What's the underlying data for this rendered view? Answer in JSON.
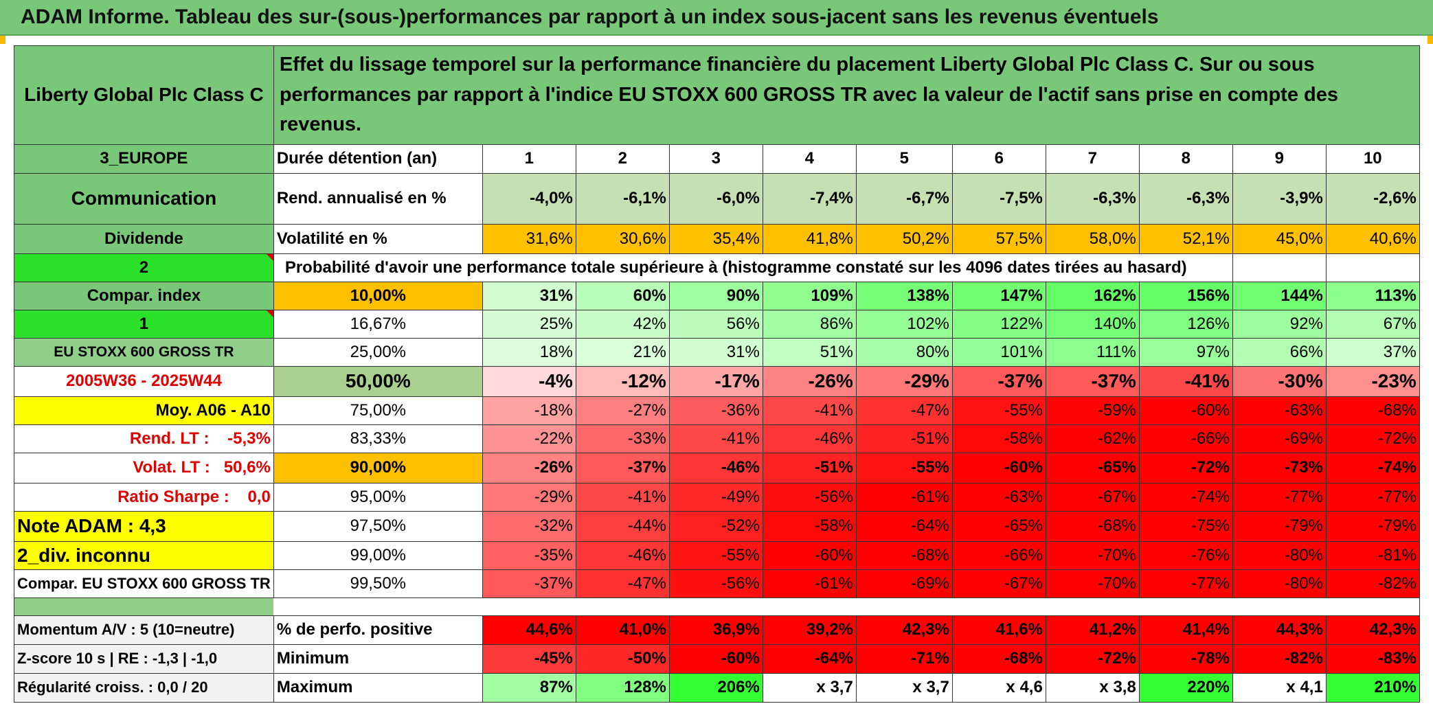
{
  "title": "ADAM Informe. Tableau des sur-(sous-)performances par rapport à un index sous-jacent sans les revenus éventuels",
  "asset": "Liberty Global Plc Class C",
  "description": "Effet du lissage temporel sur la performance financière du placement Liberty Global Plc Class C. Sur ou sous performances par rapport à l'indice EU STOXX 600 GROSS TR avec la valeur de l'actif sans prise en compte des revenus.",
  "left": {
    "region": "3_EUROPE",
    "sector": "Communication",
    "dividend": "Dividende",
    "val2": "2",
    "compar_index": "Compar. index",
    "val1": "1",
    "index_name": "EU STOXX 600 GROSS TR",
    "period": "2005W36 - 2025W44",
    "moy": "Moy. A06 - A10",
    "rend_lt": "Rend. LT :    -5,3%",
    "volat_lt": "Volat. LT :   50,6%",
    "sharpe": "Ratio Sharpe :    0,0",
    "note": "Note ADAM : 4,3",
    "div_unknown": "2_div. inconnu",
    "compar_full": "Compar. EU STOXX 600 GROSS TR",
    "momentum": "Momentum A/V : 5 (10=neutre)",
    "zscore": "Z-score 10 s | RE : -1,3 | -1,0",
    "regularite": "Régularité croiss. : 0,0 / 20"
  },
  "header_label": "Durée détention (an)",
  "years": [
    "1",
    "2",
    "3",
    "4",
    "5",
    "6",
    "7",
    "8",
    "9",
    "10"
  ],
  "rend_label": "Rend. annualisé en %",
  "rend": [
    "-4,0%",
    "-6,1%",
    "-6,0%",
    "-7,4%",
    "-6,7%",
    "-7,5%",
    "-6,3%",
    "-6,3%",
    "-3,9%",
    "-2,6%"
  ],
  "vol_label": "Volatilité en %",
  "vol": [
    "31,6%",
    "30,6%",
    "35,4%",
    "41,8%",
    "50,2%",
    "57,5%",
    "58,0%",
    "52,1%",
    "45,0%",
    "40,6%"
  ],
  "prob_title": "Probabilité d'avoir une performance totale supérieure à (histogramme constaté sur les 4096 dates tirées au hasard)",
  "prob_rows": [
    {
      "p": "10,00%",
      "v": [
        "31%",
        "60%",
        "90%",
        "109%",
        "138%",
        "147%",
        "162%",
        "156%",
        "144%",
        "113%"
      ]
    },
    {
      "p": "16,67%",
      "v": [
        "25%",
        "42%",
        "56%",
        "86%",
        "102%",
        "122%",
        "140%",
        "126%",
        "92%",
        "67%"
      ]
    },
    {
      "p": "25,00%",
      "v": [
        "18%",
        "21%",
        "31%",
        "51%",
        "80%",
        "101%",
        "111%",
        "97%",
        "66%",
        "37%"
      ]
    },
    {
      "p": "50,00%",
      "v": [
        "-4%",
        "-12%",
        "-17%",
        "-26%",
        "-29%",
        "-37%",
        "-37%",
        "-41%",
        "-30%",
        "-23%"
      ]
    },
    {
      "p": "75,00%",
      "v": [
        "-18%",
        "-27%",
        "-36%",
        "-41%",
        "-47%",
        "-55%",
        "-59%",
        "-60%",
        "-63%",
        "-68%"
      ]
    },
    {
      "p": "83,33%",
      "v": [
        "-22%",
        "-33%",
        "-41%",
        "-46%",
        "-51%",
        "-58%",
        "-62%",
        "-66%",
        "-69%",
        "-72%"
      ]
    },
    {
      "p": "90,00%",
      "v": [
        "-26%",
        "-37%",
        "-46%",
        "-51%",
        "-55%",
        "-60%",
        "-65%",
        "-72%",
        "-73%",
        "-74%"
      ]
    },
    {
      "p": "95,00%",
      "v": [
        "-29%",
        "-41%",
        "-49%",
        "-56%",
        "-61%",
        "-63%",
        "-67%",
        "-74%",
        "-77%",
        "-77%"
      ]
    },
    {
      "p": "97,50%",
      "v": [
        "-32%",
        "-44%",
        "-52%",
        "-58%",
        "-64%",
        "-65%",
        "-68%",
        "-75%",
        "-79%",
        "-79%"
      ]
    },
    {
      "p": "99,00%",
      "v": [
        "-35%",
        "-46%",
        "-55%",
        "-60%",
        "-68%",
        "-66%",
        "-70%",
        "-76%",
        "-80%",
        "-81%"
      ]
    },
    {
      "p": "99,50%",
      "v": [
        "-37%",
        "-47%",
        "-56%",
        "-61%",
        "-69%",
        "-67%",
        "-70%",
        "-77%",
        "-80%",
        "-82%"
      ]
    }
  ],
  "pos_label": "% de perfo. positive",
  "pos": [
    "44,6%",
    "41,0%",
    "36,9%",
    "39,2%",
    "42,3%",
    "41,6%",
    "41,2%",
    "41,4%",
    "44,3%",
    "42,3%"
  ],
  "min_label": "Minimum",
  "min": [
    "-45%",
    "-50%",
    "-60%",
    "-64%",
    "-71%",
    "-68%",
    "-72%",
    "-78%",
    "-82%",
    "-83%"
  ],
  "max_label": "Maximum",
  "max": [
    "87%",
    "128%",
    "206%",
    "x 3,7",
    "x 3,7",
    "x 4,6",
    "x 3,8",
    "220%",
    "x 4,1",
    "210%"
  ],
  "colors": {
    "header_green": "#79c87a",
    "rend_green": "#c6e0b4",
    "orange": "#ffc000",
    "yellow": "#ffff00",
    "bright_green": "#2be02b",
    "negative_red": "#e00000"
  }
}
